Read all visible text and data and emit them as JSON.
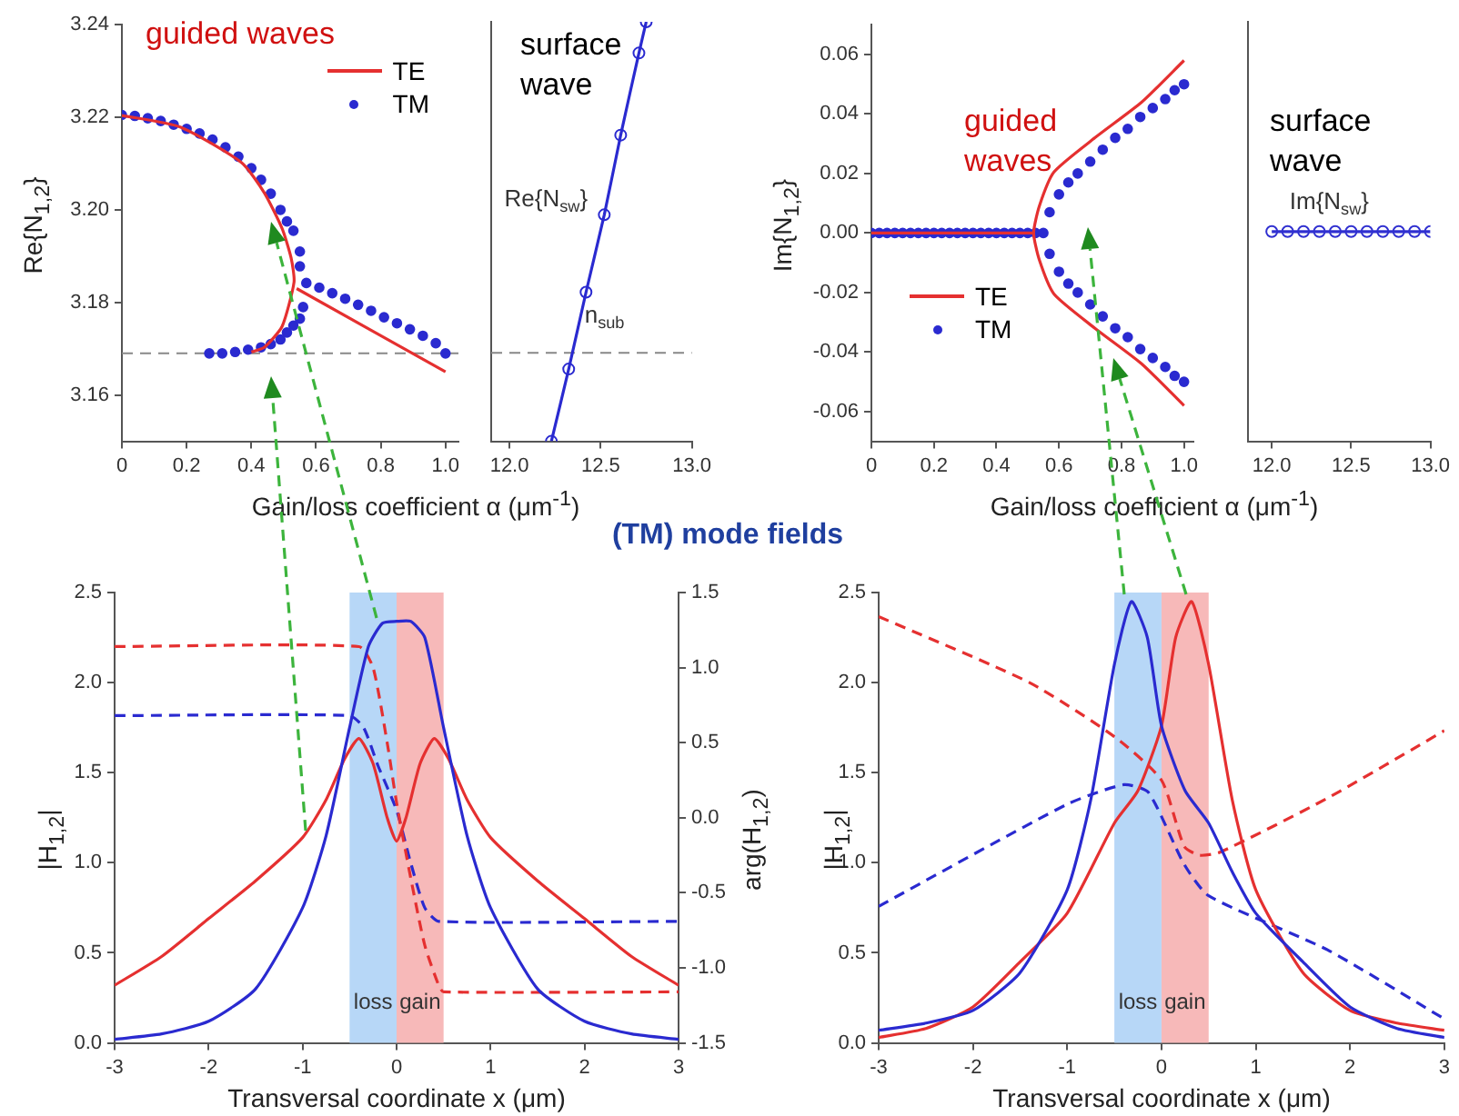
{
  "chart_data": [
    {
      "type": "line",
      "annotations": [
        "guided waves"
      ],
      "xlabel": "Gain/loss coefficient α (μm$^{-1}$)",
      "ylabel": "Re{N$_{1,2}$}",
      "xlim": [
        0,
        1.04
      ],
      "xticks": [
        0,
        0.2,
        0.4,
        0.6,
        0.8,
        {
          "value": 1,
          "label": "1.0"
        }
      ],
      "ylim": [
        3.15,
        3.24
      ],
      "yticks": [
        3.16,
        3.18,
        {
          "value": 3.2,
          "label": "3.20"
        },
        3.22,
        3.24
      ],
      "grid": false,
      "legend": "top right",
      "ref_lines": [
        {
          "axis": "y",
          "value": 3.169,
          "color": "#888888",
          "line_style": "dashed"
        }
      ],
      "series": [
        {
          "name": "TE",
          "type": "line",
          "color": "#e53030",
          "x": [
            0,
            0.18,
            0.37,
            0.44,
            0.495,
            0.523,
            0.532,
            0.495,
            0.44,
            0.4,
            null,
            0.54,
            1.0
          ],
          "values": [
            3.2204,
            3.2179,
            3.2102,
            3.2037,
            3.196,
            3.1896,
            3.1844,
            3.1748,
            3.1703,
            3.1693,
            null,
            3.183,
            3.165
          ]
        },
        {
          "name": "TM",
          "type": "scatter",
          "marker": "circle",
          "color": "#2a2ad0",
          "x": [
            0,
            0.04,
            0.08,
            0.12,
            0.16,
            0.2,
            0.24,
            0.28,
            0.32,
            0.36,
            0.4,
            0.43,
            0.46,
            0.49,
            0.51,
            0.53,
            0.55,
            0.55,
            0.27,
            0.31,
            0.35,
            0.39,
            0.43,
            0.46,
            0.49,
            0.51,
            0.53,
            0.55,
            0.56,
            0.57,
            0.61,
            0.65,
            0.69,
            0.73,
            0.77,
            0.81,
            0.85,
            0.89,
            0.93,
            0.97,
            1.0
          ],
          "values": [
            3.2205,
            3.2203,
            3.2198,
            3.2192,
            3.2184,
            3.2175,
            3.2165,
            3.2152,
            3.2135,
            3.2115,
            3.209,
            3.2065,
            3.2035,
            3.2,
            3.1975,
            3.1955,
            3.191,
            3.1878,
            3.169,
            3.169,
            3.1693,
            3.1698,
            3.1703,
            3.171,
            3.172,
            3.1735,
            3.175,
            3.1765,
            3.179,
            3.1842,
            3.1832,
            3.182,
            3.1808,
            3.1795,
            3.1782,
            3.1768,
            3.1755,
            3.1742,
            3.1728,
            3.1712,
            3.169
          ]
        }
      ]
    },
    {
      "type": "line",
      "annotations": [
        "surface wave"
      ],
      "xlim": [
        11.9,
        13.0
      ],
      "xticks": [
        {
          "value": 12,
          "label": "12.0"
        },
        12.5,
        {
          "value": 13,
          "label": "13.0"
        }
      ],
      "ylim": [
        3.15,
        3.24
      ],
      "tick_labels": "x",
      "grid": false,
      "ref_lines": [
        {
          "axis": "y",
          "value": 3.169,
          "label": "n$_{sub}$",
          "color": "#888888",
          "line_style": "dashed"
        }
      ],
      "series": [
        {
          "name": "Re{N$_{sw}$}",
          "type": "line",
          "marker": "circle",
          "color": "#2a2ad0",
          "x": [
            12.23,
            12.325,
            12.42,
            12.52,
            12.61,
            12.71,
            12.75
          ],
          "values": [
            3.15,
            3.1655,
            3.182,
            3.1986,
            3.2157,
            3.2333,
            3.24
          ]
        }
      ]
    },
    {
      "type": "line",
      "annotations": [
        "guided waves"
      ],
      "xlabel": "Gain/loss coefficient α (μm$^{-1}$)",
      "ylabel": "Im{N$_{1,2}$}",
      "xlim": [
        0,
        1.03
      ],
      "xticks": [
        0,
        0.2,
        0.4,
        0.6,
        0.8,
        {
          "value": 1,
          "label": "1.0"
        }
      ],
      "ylim": [
        -0.07,
        0.07
      ],
      "yticks": [
        -0.06,
        -0.04,
        -0.02,
        {
          "value": 0,
          "label": "0.00"
        },
        0.02,
        0.04,
        0.06
      ],
      "grid": false,
      "legend": "left",
      "series": [
        {
          "name": "TE",
          "type": "line",
          "color": "#e53030",
          "x": [
            1.0,
            0.865,
            0.715,
            0.584,
            0.537,
            0.519,
            0.537,
            0.584,
            0.715,
            0.865,
            1.0,
            null,
            0,
            0.519
          ],
          "values": [
            0.058,
            0.044,
            0.032,
            0.0205,
            0.009,
            0,
            -0.009,
            -0.0205,
            -0.032,
            -0.044,
            -0.058,
            null,
            0,
            0
          ]
        },
        {
          "name": "TM",
          "type": "scatter",
          "marker": "circle",
          "color": "#2a2ad0",
          "x": [
            0,
            0.025,
            0.05,
            0.075,
            0.1,
            0.125,
            0.15,
            0.175,
            0.2,
            0.225,
            0.25,
            0.275,
            0.3,
            0.325,
            0.35,
            0.375,
            0.4,
            0.425,
            0.45,
            0.475,
            0.5,
            0.525,
            0.55,
            0.57,
            0.6,
            0.63,
            0.66,
            0.7,
            0.74,
            0.78,
            0.82,
            0.86,
            0.9,
            0.94,
            0.97,
            1.0,
            0.57,
            0.6,
            0.63,
            0.66,
            0.7,
            0.74,
            0.78,
            0.82,
            0.86,
            0.9,
            0.94,
            0.97,
            1.0
          ],
          "values": [
            0,
            0,
            0,
            0,
            0,
            0,
            0,
            0,
            0,
            0,
            0,
            0,
            0,
            0,
            0,
            0,
            0,
            0,
            0,
            0,
            0,
            0,
            0,
            0.007,
            0.013,
            0.017,
            0.02,
            0.024,
            0.028,
            0.032,
            0.035,
            0.039,
            0.042,
            0.045,
            0.048,
            0.05,
            -0.007,
            -0.013,
            -0.017,
            -0.02,
            -0.024,
            -0.028,
            -0.032,
            -0.035,
            -0.039,
            -0.042,
            -0.045,
            -0.048,
            -0.05
          ]
        }
      ]
    },
    {
      "type": "line",
      "annotations": [
        "surface wave"
      ],
      "xlim": [
        11.85,
        13.0
      ],
      "xticks": [
        {
          "value": 12,
          "label": "12.0"
        },
        12.5,
        {
          "value": 13,
          "label": "13.0"
        }
      ],
      "ylim": [
        -0.07,
        0.07
      ],
      "tick_labels": "x",
      "grid": false,
      "series": [
        {
          "name": "Im{N$_{sw}$}",
          "type": "line",
          "marker": "circle",
          "color": "#3030d0",
          "x": [
            12,
            12.1,
            12.2,
            12.3,
            12.4,
            12.5,
            12.6,
            12.7,
            12.8,
            12.9,
            13
          ],
          "values": [
            0,
            0,
            0,
            0,
            0,
            0,
            0,
            0,
            0,
            0,
            0
          ]
        }
      ]
    },
    {
      "type": "line",
      "title": "(TM) mode fields",
      "xlabel": "Transversal coordinate x (μm)",
      "ylabel": "|H$_{1,2}$|",
      "y2label": "arg(H$_{1,2}$)",
      "xlim": [
        -3,
        3
      ],
      "xticks": [
        -3,
        -2,
        -1,
        0,
        1,
        2,
        3
      ],
      "ylim": [
        0,
        2.5
      ],
      "yticks": [
        {
          "value": 0,
          "label": "0.0"
        },
        0.5,
        {
          "value": 1,
          "label": "1.0"
        },
        1.5,
        {
          "value": 2,
          "label": "2.0"
        },
        2.5
      ],
      "y2lim": [
        -1.5,
        1.5
      ],
      "y2ticks": [
        -1.5,
        {
          "value": -1,
          "label": "-1.0"
        },
        -0.5,
        {
          "value": 0,
          "label": "0.0"
        },
        0.5,
        {
          "value": 1,
          "label": "1.0"
        },
        1.5
      ],
      "grid": false,
      "bands": [
        {
          "axis": "x",
          "from": -0.5,
          "to": 0,
          "label": "loss",
          "color": "#b7d7f7"
        },
        {
          "axis": "x",
          "from": 0,
          "to": 0.5,
          "label": "gain",
          "color": "#f7b9b9"
        }
      ],
      "series": [
        {
          "type": "line",
          "color": "#2a2ad0",
          "x": [
            -3,
            -2.5,
            -2,
            -1.5,
            -1,
            -0.75,
            -0.5,
            -0.3,
            -0.15,
            0,
            0.15,
            0.3,
            0.5,
            0.75,
            1,
            1.5,
            2,
            2.5,
            3
          ],
          "values": [
            0.02,
            0.05,
            0.12,
            0.3,
            0.75,
            1.15,
            1.75,
            2.2,
            2.33,
            2.34,
            2.34,
            2.25,
            1.75,
            1.15,
            0.75,
            0.3,
            0.12,
            0.05,
            0.02
          ]
        },
        {
          "type": "line",
          "color": "#e53030",
          "x": [
            -3,
            -2.5,
            -2,
            -1.5,
            -1,
            -0.75,
            -0.55,
            -0.4,
            -0.25,
            -0.1,
            0,
            0.1,
            0.25,
            0.4,
            0.55,
            0.75,
            1,
            1.5,
            2,
            2.5,
            3
          ],
          "values": [
            0.32,
            0.48,
            0.69,
            0.9,
            1.14,
            1.35,
            1.58,
            1.69,
            1.55,
            1.25,
            1.12,
            1.25,
            1.55,
            1.69,
            1.58,
            1.35,
            1.14,
            0.9,
            0.69,
            0.48,
            0.32
          ]
        },
        {
          "type": "line",
          "axis": "y2",
          "line_style": "dashed",
          "color": "#e53030",
          "x": [
            -3,
            -0.4,
            -0.25,
            -0.1,
            0,
            0.15,
            0.3,
            0.45,
            0.5,
            3
          ],
          "values": [
            1.14,
            1.14,
            1.0,
            0.5,
            0.1,
            -0.4,
            -0.85,
            -1.12,
            -1.16,
            -1.16
          ]
        },
        {
          "type": "line",
          "axis": "y2",
          "line_style": "dashed",
          "color": "#2a2ad0",
          "x": [
            -3,
            -0.5,
            -0.35,
            -0.2,
            0,
            0.15,
            0.3,
            0.45,
            3
          ],
          "values": [
            0.68,
            0.68,
            0.6,
            0.35,
            0.05,
            -0.3,
            -0.6,
            -0.69,
            -0.69
          ]
        }
      ]
    },
    {
      "type": "line",
      "xlabel": "Transversal coordinate x (μm)",
      "ylabel": "|H$_{1,2}$|",
      "xlim": [
        -3,
        3
      ],
      "xticks": [
        -3,
        -2,
        -1,
        0,
        1,
        2,
        3
      ],
      "ylim": [
        0,
        2.5
      ],
      "yticks": [
        {
          "value": 0,
          "label": "0.0"
        },
        0.5,
        {
          "value": 1,
          "label": "1.0"
        },
        1.5,
        {
          "value": 2,
          "label": "2.0"
        },
        2.5
      ],
      "y2lim": [
        -1.5,
        1.5
      ],
      "grid": false,
      "bands": [
        {
          "axis": "x",
          "from": -0.5,
          "to": 0,
          "label": "loss",
          "color": "#b7d7f7"
        },
        {
          "axis": "x",
          "from": 0,
          "to": 0.5,
          "label": "gain",
          "color": "#f7b9b9"
        }
      ],
      "series": [
        {
          "type": "line",
          "color": "#2a2ad0",
          "x": [
            -3,
            -2.5,
            -2,
            -1.5,
            -1,
            -0.75,
            -0.5,
            -0.32,
            -0.15,
            0,
            0.25,
            0.5,
            0.75,
            1,
            1.5,
            2,
            2.5,
            3
          ],
          "values": [
            0.07,
            0.11,
            0.18,
            0.39,
            0.85,
            1.35,
            2.1,
            2.45,
            2.25,
            1.76,
            1.4,
            1.22,
            0.95,
            0.72,
            0.45,
            0.2,
            0.08,
            0.03
          ]
        },
        {
          "type": "line",
          "color": "#e53030",
          "x": [
            -3,
            -2.5,
            -2,
            -1.5,
            -1,
            -0.5,
            -0.25,
            0,
            0.15,
            0.32,
            0.5,
            0.75,
            1,
            1.5,
            2,
            2.5,
            3
          ],
          "values": [
            0.03,
            0.08,
            0.2,
            0.45,
            0.72,
            1.22,
            1.4,
            1.76,
            2.25,
            2.45,
            2.1,
            1.35,
            0.85,
            0.39,
            0.18,
            0.11,
            0.07
          ]
        },
        {
          "type": "line",
          "axis": "y2",
          "line_style": "dashed",
          "color": "#e53030",
          "x": [
            -3,
            -1.4,
            -0.5,
            0,
            0.24,
            0.4,
            0.62,
            1.76,
            3
          ],
          "values": [
            1.34,
            0.9,
            0.54,
            0.25,
            -0.19,
            -0.25,
            -0.23,
            0.13,
            0.58
          ]
        },
        {
          "type": "line",
          "axis": "y2",
          "line_style": "dashed",
          "color": "#2a2ad0",
          "x": [
            -3,
            -1,
            -0.4,
            -0.14,
            0.24,
            0.5,
            1.76,
            3
          ],
          "values": [
            -0.59,
            0.09,
            0.22,
            0.17,
            -0.31,
            -0.52,
            -0.88,
            -1.34
          ]
        }
      ]
    }
  ]
}
